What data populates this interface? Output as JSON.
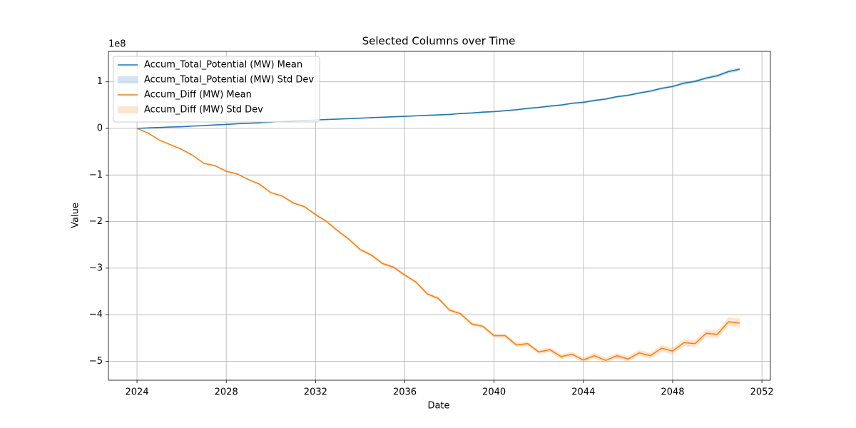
{
  "chart_data": {
    "type": "line",
    "title": "Selected Columns over Time",
    "x_label": "Date",
    "y_label": "Value",
    "y_offset_label": "1e8",
    "x": [
      2024,
      2024.5,
      2025,
      2025.5,
      2026,
      2026.5,
      2027,
      2027.5,
      2028,
      2028.5,
      2029,
      2029.5,
      2030,
      2030.5,
      2031,
      2031.5,
      2032,
      2032.5,
      2033,
      2033.5,
      2034,
      2034.5,
      2035,
      2035.5,
      2036,
      2036.5,
      2037,
      2037.5,
      2038,
      2038.5,
      2039,
      2039.5,
      2040,
      2040.5,
      2041,
      2041.5,
      2042,
      2042.5,
      2043,
      2043.5,
      2044,
      2044.5,
      2045,
      2045.5,
      2046,
      2046.5,
      2047,
      2047.5,
      2048,
      2048.5,
      2049,
      2049.5,
      2050,
      2050.5,
      2051
    ],
    "series": [
      {
        "name": "Accum_Total_Potential (MW) Mean",
        "band_name": "Accum_Total_Potential (MW) Std Dev",
        "color": "#1f77b4",
        "values": [
          0,
          0.01,
          0.02,
          0.03,
          0.035,
          0.05,
          0.06,
          0.075,
          0.085,
          0.1,
          0.11,
          0.12,
          0.135,
          0.15,
          0.16,
          0.17,
          0.18,
          0.19,
          0.2,
          0.21,
          0.22,
          0.23,
          0.24,
          0.25,
          0.26,
          0.27,
          0.28,
          0.29,
          0.3,
          0.32,
          0.33,
          0.35,
          0.36,
          0.38,
          0.4,
          0.43,
          0.45,
          0.48,
          0.5,
          0.54,
          0.56,
          0.6,
          0.63,
          0.68,
          0.71,
          0.76,
          0.8,
          0.86,
          0.9,
          0.97,
          1.01,
          1.08,
          1.13,
          1.22,
          1.27
        ],
        "std": [
          0,
          0.001,
          0.002,
          0.002,
          0.003,
          0.003,
          0.004,
          0.004,
          0.005,
          0.005,
          0.006,
          0.006,
          0.007,
          0.007,
          0.008,
          0.008,
          0.009,
          0.009,
          0.01,
          0.01,
          0.011,
          0.011,
          0.012,
          0.012,
          0.013,
          0.013,
          0.014,
          0.014,
          0.015,
          0.015,
          0.016,
          0.016,
          0.017,
          0.017,
          0.018,
          0.018,
          0.019,
          0.019,
          0.02,
          0.021,
          0.022,
          0.023,
          0.024,
          0.025,
          0.026,
          0.027,
          0.028,
          0.029,
          0.03,
          0.031,
          0.032,
          0.034,
          0.036,
          0.038,
          0.04
        ]
      },
      {
        "name": "Accum_Diff (MW) Mean",
        "band_name": "Accum_Diff (MW) Std Dev",
        "color": "#ff7f0e",
        "values": [
          0,
          -0.1,
          -0.25,
          -0.35,
          -0.45,
          -0.58,
          -0.75,
          -0.8,
          -0.92,
          -0.98,
          -1.1,
          -1.2,
          -1.38,
          -1.45,
          -1.6,
          -1.68,
          -1.85,
          -2.0,
          -2.2,
          -2.38,
          -2.6,
          -2.72,
          -2.9,
          -2.98,
          -3.15,
          -3.3,
          -3.55,
          -3.65,
          -3.9,
          -3.98,
          -4.2,
          -4.25,
          -4.45,
          -4.45,
          -4.65,
          -4.62,
          -4.8,
          -4.75,
          -4.9,
          -4.85,
          -4.97,
          -4.88,
          -4.98,
          -4.88,
          -4.95,
          -4.82,
          -4.88,
          -4.72,
          -4.78,
          -4.6,
          -4.62,
          -4.4,
          -4.42,
          -4.15,
          -4.18
        ],
        "std": [
          0,
          0.005,
          0.007,
          0.009,
          0.01,
          0.012,
          0.013,
          0.015,
          0.016,
          0.017,
          0.018,
          0.019,
          0.02,
          0.021,
          0.022,
          0.023,
          0.024,
          0.025,
          0.026,
          0.027,
          0.028,
          0.029,
          0.03,
          0.031,
          0.032,
          0.033,
          0.034,
          0.035,
          0.036,
          0.037,
          0.038,
          0.039,
          0.04,
          0.042,
          0.044,
          0.046,
          0.048,
          0.05,
          0.052,
          0.054,
          0.056,
          0.058,
          0.06,
          0.062,
          0.064,
          0.066,
          0.068,
          0.07,
          0.072,
          0.075,
          0.078,
          0.082,
          0.086,
          0.092,
          0.1
        ]
      }
    ],
    "xlim": [
      2022.72,
      2052.38
    ],
    "xticks": [
      2024,
      2028,
      2032,
      2036,
      2040,
      2044,
      2048,
      2052
    ],
    "ylim": [
      -5.406,
      1.654
    ],
    "yticks": [
      {
        "value": -5,
        "label": "−5"
      },
      {
        "value": -4,
        "label": "−4"
      },
      {
        "value": -3,
        "label": "−3"
      },
      {
        "value": -2,
        "label": "−2"
      },
      {
        "value": -1,
        "label": "−1"
      },
      0,
      1
    ],
    "grid": true,
    "legend": "upper left"
  }
}
